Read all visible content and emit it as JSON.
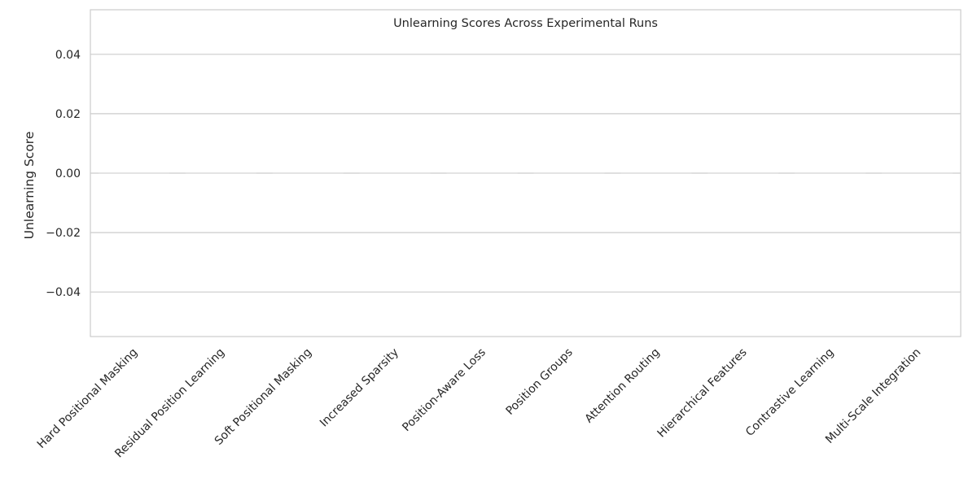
{
  "chart_data": {
    "type": "bar",
    "title": "Unlearning Scores Across Experimental Runs",
    "xlabel": "",
    "ylabel": "Unlearning Score",
    "categories": [
      "Hard Positional Masking",
      "Residual Position Learning",
      "Soft Positional Masking",
      "Increased Sparsity",
      "Position-Aware Loss",
      "Position Groups",
      "Attention Routing",
      "Hierarchical Features",
      "Contrastive Learning",
      "Multi-Scale Integration"
    ],
    "values": [
      0,
      0,
      0,
      0,
      0,
      0,
      0,
      0,
      0,
      0
    ],
    "ylim": [
      -0.055,
      0.055
    ],
    "yticks": [
      -0.04,
      -0.02,
      0.0,
      0.02,
      0.04
    ],
    "ytick_labels": [
      "−0.04",
      "−0.02",
      "0.00",
      "0.02",
      "0.04"
    ],
    "grid": "horizontal",
    "legend": "none",
    "colors": {
      "grid": "#cccccc",
      "axes_edge": "#cccccc",
      "bar_edge": "#e0e0e0",
      "text": "#262626",
      "background": "#ffffff"
    }
  }
}
